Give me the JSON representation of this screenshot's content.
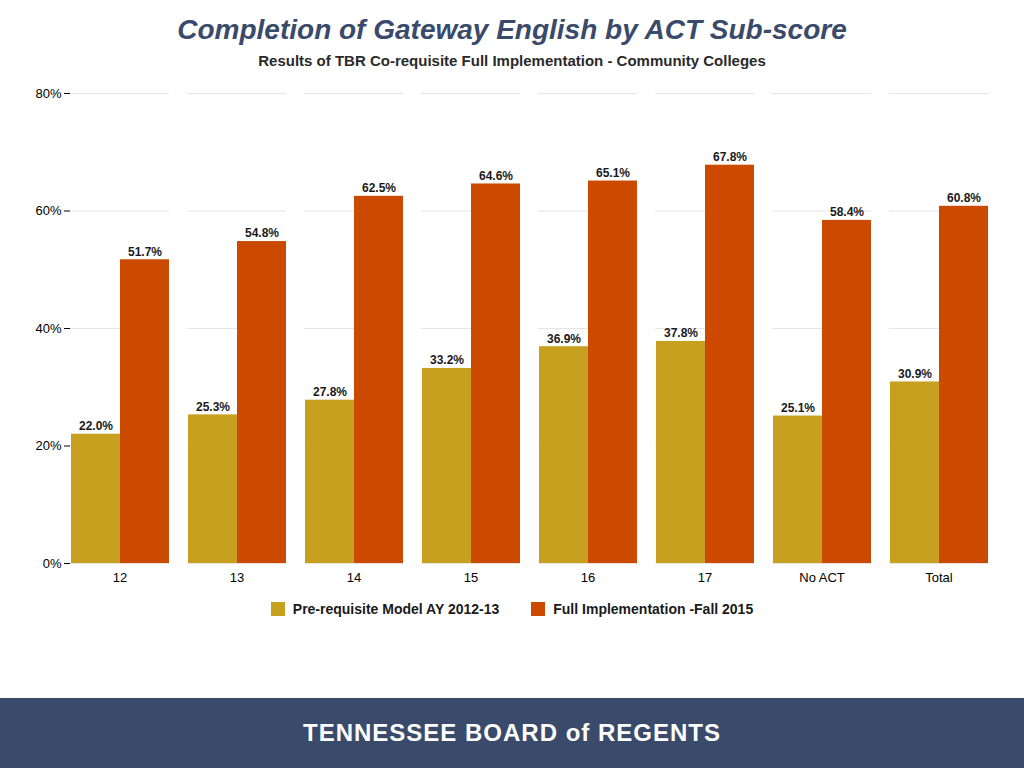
{
  "chart_data": {
    "type": "bar",
    "title": "Completion of Gateway English by ACT Sub-score",
    "subtitle": "Results of TBR Co-requisite Full Implementation - Community Colleges",
    "categories": [
      "12",
      "13",
      "14",
      "15",
      "16",
      "17",
      "No ACT",
      "Total"
    ],
    "series": [
      {
        "name": "Pre-requisite Model AY 2012-13",
        "color": "#C8A020",
        "values": [
          22.0,
          25.3,
          27.8,
          33.2,
          36.9,
          37.8,
          25.1,
          30.9
        ],
        "value_labels": [
          "22.0%",
          "25.3%",
          "27.8%",
          "33.2%",
          "36.9%",
          "37.8%",
          "25.1%",
          "30.9%"
        ]
      },
      {
        "name": "Full Implementation -Fall 2015",
        "color": "#CC4A00",
        "values": [
          51.7,
          54.8,
          62.5,
          64.6,
          65.1,
          67.8,
          58.4,
          60.8
        ],
        "value_labels": [
          "51.7%",
          "54.8%",
          "62.5%",
          "64.6%",
          "65.1%",
          "67.8%",
          "58.4%",
          "60.8%"
        ]
      }
    ],
    "ylim": [
      0,
      80
    ],
    "yticks": [
      {
        "value": 0,
        "label": "0%"
      },
      {
        "value": 20,
        "label": "20%"
      },
      {
        "value": 40,
        "label": "40%"
      },
      {
        "value": 60,
        "label": "60%"
      },
      {
        "value": 80,
        "label": "80%"
      }
    ],
    "grid": true,
    "legend": "bottom",
    "data_labels": true,
    "annotations": [
      "TENNESSEE BOARD of REGENTS"
    ]
  }
}
